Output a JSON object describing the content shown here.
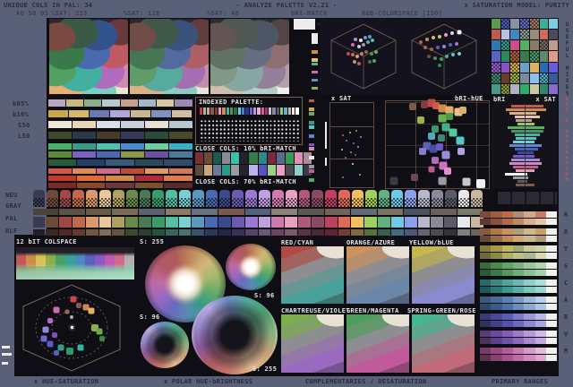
{
  "topbar": {
    "title_left": "UNIQUE COLS IN PAL: 34",
    "title_center": "- ANALYZE PALETTE V2.21 -",
    "title_right": "x SATURATION MODEL: PURITY",
    "toggles": "AO SO OS",
    "sat255": "%SAT: 255",
    "sat128": "%SAT: 128",
    "sat48": "%SAT: 48",
    "brimatch": "bRI-MATCh",
    "rgb_title": "RGB-COLORSPACE [ISO]"
  },
  "sidebar": {
    "b65": "b65%",
    "b10": "b10%",
    "s50": "S50",
    "l50": "L50",
    "neu": "NEU",
    "gray": "GRAY",
    "pal": "PAL",
    "hlf": "HLF"
  },
  "right_edge": {
    "useful_mixes": "USEFUL MIXES",
    "bri_saturation": "bRI & SATURATION",
    "primary_letters": "ROYGCABVM"
  },
  "bottombar": {
    "hue_saturation": "x HUE-SATURATION",
    "polar": "x POLAR HUE-bRIGHTNESS",
    "comp": "COMPLEMENTARIES / DESATURATION",
    "primary": "PRIMARY RANGES"
  },
  "palette": {
    "colors": [
      "#3a3a52",
      "#6b4a3a",
      "#a04848",
      "#c06a4a",
      "#d89a6a",
      "#e8c89a",
      "#b0a060",
      "#6a8a4a",
      "#4a7a52",
      "#3a9a6a",
      "#52c0a0",
      "#7ad0d0",
      "#5a9ac0",
      "#4a6ab0",
      "#3a4a8a",
      "#6a5ab0",
      "#9a7ad0",
      "#c0a0e0",
      "#d07ab0",
      "#e8a0c0",
      "#b05a7a",
      "#8a4a62",
      "#c04060",
      "#e06a5a",
      "#f0c060",
      "#a0d060",
      "#60b080",
      "#70c8e8",
      "#8aa0e8",
      "#b8b8c8",
      "#8a8a9a",
      "#5a5a6a",
      "#e8e8e8",
      "#c8b8a0"
    ]
  },
  "gray_row": [
    "#4a4438",
    "#5a5248",
    "#6a5a4a",
    "#7a6a58",
    "#5a6270",
    "#8a7a68",
    "#6a7280",
    "#7a5a50",
    "#52627a",
    "#8a8274",
    "#5a5a52",
    "#72625a",
    "#626a78",
    "#7a7262",
    "#4a525e",
    "#6a6258",
    "#7a7a6a"
  ],
  "strips": {
    "b65": [
      "#b8a8c0",
      "#c8b87a",
      "#8ab08a",
      "#b8c8d0",
      "#c8a08a",
      "#a0b8c8",
      "#d8c8a0",
      "#9a8ab0"
    ],
    "b10": [
      "#c8a84a",
      "#d8b86a",
      "#6a7ab0",
      "#b0a8d8",
      "#c8b890",
      "#8090c0",
      "#d0c0a0"
    ],
    "s50": [
      "#f0e8d8",
      "#e8d8b8",
      "#d8e0e8",
      "#c8d0d8",
      "#e8e0d0",
      "#b8c8d0"
    ],
    "l50": [
      "#3a4a2a",
      "#2a3a4a",
      "#4a3a2a",
      "#3a3a5a",
      "#2a4a3a",
      "#4a4a2a"
    ],
    "g1": [
      "#4ab06a",
      "#3a9a8a",
      "#52c0b0",
      "#4a8ad0",
      "#6ad0a0",
      "#3ab0c8"
    ],
    "g2": [
      "#5a8a3a",
      "#7a62c0",
      "#4a6ab0",
      "#8a9a4a",
      "#6a52a0",
      "#4a7a9a"
    ],
    "g3": [
      "#2a5a3a",
      "#24406a",
      "#3a5a7a",
      "#2a4a5a",
      "#344a6a"
    ],
    "r1": [
      "#d05a4a",
      "#e08a5a",
      "#d06a8a",
      "#c04a3a",
      "#e09a6a",
      "#d07a5a"
    ],
    "r2": [
      "#c03a2a",
      "#e06a3a",
      "#d08a4a",
      "#b02a3a",
      "#e07a52"
    ],
    "r3": [
      "#7a2a22",
      "#8a4a2a",
      "#6a3a3a",
      "#7a522a",
      "#5a2a2a"
    ]
  },
  "indexed": {
    "title": "INDEXED PALETTE:",
    "strip": [
      "#c04040",
      "#b0b0b0",
      "#c8a890",
      "#8a5a4a",
      "#7a3a3a",
      "#e8a0b0",
      "#d08a5a",
      "#4ab0a0",
      "#4a9a5a",
      "#2a6a4a",
      "#6ad0d0",
      "#4a7ad0",
      "#2a3a8a",
      "#7a5ad0",
      "#b09ae0",
      "#e8b0d0",
      "#d060a0",
      "#9a3a6a",
      "#c8c8c8",
      "#8a8a9a",
      "#5a5a6a",
      "#a0c86a",
      "#5ab0d8",
      "#c8b890",
      "#e8e8e8",
      "#ffffff"
    ]
  },
  "close_cols": {
    "label10": "CLOSE COLS: 10% bRI-MATCH",
    "label70": "CLOSE COLS: 70% bRI-MATCH",
    "cells": [
      "#7a3030",
      "#6a4a3a",
      "#1a5a4a",
      "#8a8a92",
      "#3ac0a8",
      "#23232b",
      "#3a7a4a",
      "#2a8a8a",
      "#7a2a3a",
      "#5a6a8a",
      "#3a9a52",
      "#e090b0",
      "#b08a9a",
      "#5a4a3a",
      "#c8a87a",
      "#6a7a9a",
      "#2a9a8a",
      "#9a9aa2",
      "#23232b",
      "#c0b0f0",
      "#5a52c0",
      "#9ad08a",
      "#e8a0c0",
      "#4a4a52",
      "#8ad0c8",
      "#3a3a4a"
    ]
  },
  "mixes": {
    "colors": [
      "#5a9a4a",
      "#4a5ab0!",
      "#8a92a2",
      "#5a6ac0!",
      "#9a7a62!",
      "#3ab09a",
      "#7ad0e0",
      "#c05a50",
      "#b8c0e8",
      "#3a8ac0",
      "#8a9a8a!",
      "#9a8a7a",
      "#d06a5a",
      "#4a4a5a",
      "#2a7ab0",
      "#3a9a8a!",
      "#d04a90",
      "#52b062",
      "#8a7a6a",
      "#7a6a5a!",
      "#c09a8a",
      "#5a62c8",
      "#2a8a5a",
      "#b05a3a!",
      "#3a7a4a",
      "#4a9a6a!",
      "#5a8a6a",
      "#e09a8a",
      "#9a5ad0!",
      "#8a52c0",
      "#d0b04a!",
      "#6aa0d0",
      "#e0b05a",
      "#2a6ab0",
      "#6a5ae0",
      "#3a8a6a!",
      "#6a3a2a",
      "#9ab04a!",
      "#7a8a9a",
      "#8ac0f0",
      "#4ab0c0!",
      "#3a5a9a",
      "#4a9a8a",
      "#8a9a3a!",
      "#b0b0c0",
      "#2ab062",
      "#d0c8a0",
      "#2a8a6a",
      "#8a6ad0"
    ]
  },
  "rgb_cubes": {
    "cube1": [
      [
        46,
        28,
        "#e8e8e8",
        4
      ],
      [
        40,
        26,
        "#b090d0",
        4
      ],
      [
        52,
        24,
        "#8a8ad0",
        4
      ],
      [
        58,
        22,
        "#5a9ad8",
        4
      ],
      [
        36,
        34,
        "#d06ab0",
        4
      ],
      [
        44,
        36,
        "#c8c8c8",
        4
      ],
      [
        50,
        34,
        "#9a9aa8",
        4
      ],
      [
        56,
        30,
        "#4ab0b0",
        4
      ],
      [
        62,
        28,
        "#52c0a0",
        4
      ],
      [
        30,
        46,
        "#c04a4a",
        4
      ],
      [
        36,
        48,
        "#d06a4a",
        4
      ],
      [
        42,
        50,
        "#e8a05a",
        4
      ],
      [
        48,
        46,
        "#b08a5a",
        4
      ],
      [
        54,
        44,
        "#8a6a4a",
        4
      ],
      [
        60,
        46,
        "#4a9a52",
        4
      ],
      [
        66,
        44,
        "#6ab062",
        4
      ],
      [
        38,
        58,
        "#d08a8a",
        4
      ],
      [
        44,
        60,
        "#c0605a",
        4
      ],
      [
        58,
        58,
        "#3a7a4a",
        4
      ],
      [
        64,
        56,
        "#52a06a",
        4
      ]
    ],
    "cube2": [
      [
        20,
        30,
        "#c05a5a",
        4
      ],
      [
        28,
        26,
        "#d0885a",
        4
      ],
      [
        36,
        24,
        "#e8b06a",
        4
      ],
      [
        44,
        22,
        "#c8c84a",
        4
      ],
      [
        52,
        20,
        "#e89ad0",
        4
      ],
      [
        60,
        18,
        "#d8d8d8",
        4
      ],
      [
        70,
        16,
        "#f0f0f0",
        5
      ],
      [
        26,
        38,
        "#b0624a",
        4
      ],
      [
        34,
        40,
        "#8a6a52",
        4
      ],
      [
        42,
        38,
        "#6a5ac0",
        4
      ],
      [
        50,
        36,
        "#8a8ae0",
        4
      ],
      [
        58,
        34,
        "#5a62c8",
        4
      ],
      [
        66,
        32,
        "#9a7ad0",
        4
      ],
      [
        30,
        50,
        "#7a4a42",
        4
      ],
      [
        38,
        52,
        "#5a8a52",
        4
      ],
      [
        46,
        54,
        "#3aa06a",
        4
      ],
      [
        54,
        50,
        "#4ab0a8",
        4
      ],
      [
        62,
        48,
        "#52c8c0",
        4
      ],
      [
        70,
        46,
        "#6ad0d8",
        4
      ],
      [
        44,
        62,
        "#2a8a5a",
        4
      ]
    ]
  },
  "tornado": {
    "label_left": "bRI",
    "label_right": "x SAT",
    "bars": [
      [
        "#c05a4a",
        40,
        55
      ],
      [
        "#d08a4a",
        55,
        65
      ],
      [
        "#d8b08a",
        45,
        35
      ],
      [
        "#e8c0a0",
        30,
        45
      ],
      [
        "#b0a090",
        25,
        20
      ],
      [
        "#a0c05a",
        20,
        30
      ],
      [
        "#5ab05a",
        50,
        60
      ],
      [
        "#3a9a6a",
        40,
        55
      ],
      [
        "#4ab0a0",
        30,
        45
      ],
      [
        "#52c8c0",
        25,
        35
      ],
      [
        "#6ad0e0",
        35,
        30
      ],
      [
        "#5a8ad0",
        45,
        50
      ],
      [
        "#4a62c0",
        30,
        40
      ],
      [
        "#3a4a9a",
        20,
        25
      ],
      [
        "#7a5ac0",
        35,
        30
      ],
      [
        "#a08ae0",
        40,
        45
      ],
      [
        "#d08ac0",
        45,
        50
      ],
      [
        "#c05a9a",
        35,
        40
      ],
      [
        "#e8a0b0",
        25,
        30
      ],
      [
        "#f0f0f0",
        60,
        8
      ],
      [
        "#9a9aa2",
        35,
        10
      ],
      [
        "#5a5a62",
        20,
        8
      ],
      [
        "#7a5a4a",
        25,
        30
      ]
    ]
  },
  "scatter": {
    "label_sat": "x SAT",
    "label_brihue": "bRI-hUE",
    "dots": [
      [
        26,
        6,
        "#7a5a4a",
        8
      ],
      [
        37,
        4,
        "#8a3a3a",
        8
      ],
      [
        44,
        2,
        "#c04848",
        9
      ],
      [
        49,
        5,
        "#d05a4a",
        8
      ],
      [
        55,
        8,
        "#d08a4a",
        9
      ],
      [
        62,
        10,
        "#e8a86a",
        9
      ],
      [
        70,
        12,
        "#e8c088",
        9
      ],
      [
        75,
        10,
        "#d8b06a",
        8
      ],
      [
        34,
        22,
        "#a0b04a",
        8
      ],
      [
        55,
        20,
        "#6ab04a",
        9
      ],
      [
        62,
        18,
        "#4a9a4a",
        8
      ],
      [
        48,
        32,
        "#3a9a6a",
        8
      ],
      [
        58,
        30,
        "#42b08a",
        9
      ],
      [
        65,
        36,
        "#52c8a0",
        9
      ],
      [
        54,
        42,
        "#3a8a7a",
        8
      ],
      [
        44,
        40,
        "#52a8c0",
        8
      ],
      [
        72,
        45,
        "#52c8c8",
        9
      ],
      [
        40,
        52,
        "#5a62b8",
        9
      ],
      [
        46,
        55,
        "#4a4aa0",
        9
      ],
      [
        52,
        53,
        "#6a5ac8",
        8
      ],
      [
        36,
        58,
        "#8a7ad0",
        8
      ],
      [
        58,
        62,
        "#9a8ae0",
        9
      ],
      [
        73,
        58,
        "#b0a0e8",
        8
      ],
      [
        48,
        68,
        "#b06ac0",
        8
      ],
      [
        56,
        74,
        "#d070c0",
        9
      ],
      [
        60,
        80,
        "#e090d0",
        8
      ],
      [
        44,
        78,
        "#c05a8a",
        7
      ],
      [
        28,
        88,
        "#6a4a52",
        8
      ],
      [
        8,
        92,
        "#3a3a42",
        9
      ],
      [
        55,
        92,
        "#9a9aa2",
        9
      ],
      [
        78,
        93,
        "#c8c8c8",
        9
      ],
      [
        92,
        95,
        "#f0f0f0",
        10
      ]
    ],
    "mini_dots": [
      [
        30,
        38,
        "#d06a5a",
        2
      ],
      [
        45,
        35,
        "#e8b06a",
        2
      ],
      [
        60,
        33,
        "#8ab04a",
        2
      ],
      [
        70,
        40,
        "#52b0a0",
        2
      ],
      [
        38,
        45,
        "#5a8ad0",
        2
      ],
      [
        55,
        48,
        "#9a6ad0",
        2
      ],
      [
        65,
        52,
        "#d08ac0",
        2
      ],
      [
        28,
        55,
        "#c8c8c8",
        2
      ],
      [
        48,
        58,
        "#4ab0c0",
        2
      ],
      [
        58,
        62,
        "#6a62c8",
        2
      ],
      [
        35,
        65,
        "#c05a9a",
        2
      ],
      [
        52,
        72,
        "#e8e8e8",
        2
      ],
      [
        68,
        85,
        "#d0b06a",
        2
      ],
      [
        30,
        88,
        "#8a8a92",
        2
      ]
    ]
  },
  "ticks": {
    "strip_top": [
      "",
      "#d08a4a",
      "",
      "#e8c060",
      "#52b0a0",
      "",
      "#d06ab0",
      "",
      "#6a8ad0",
      "",
      "#8ab04a",
      ""
    ],
    "strip_side": [
      "#c05a4a",
      "",
      "#d0a84a",
      "#6ab04a",
      "",
      "#3a9a8a",
      "#52c8c8",
      "",
      "#5a8ad0",
      "",
      "#7a5ac0",
      "#d08ac0",
      "",
      "#e8e8e8",
      "",
      "#9a9aa2",
      "#c05a9a",
      "",
      "#52b062",
      ""
    ]
  },
  "colspace": {
    "title": "12 bIT COLSPACE",
    "columns": [
      "#c05a5a",
      "#d08a4a",
      "#d8c05a",
      "#8ab04a",
      "#4aa06a",
      "#3aa09a",
      "#4a8ac0",
      "#5a62c0",
      "#8a5ac8",
      "#c05ab0",
      "#d06a8a",
      "#b0b0b0"
    ],
    "wheel_dots": [
      [
        52,
        18,
        "#c84848",
        7
      ],
      [
        57,
        25,
        "#8a5a4a",
        6
      ],
      [
        63,
        27,
        "#d08a4a",
        7
      ],
      [
        68,
        31,
        "#e8b060",
        7
      ],
      [
        36,
        30,
        "#d06ab0",
        7
      ],
      [
        46,
        32,
        "#9a6a5a",
        5
      ],
      [
        50,
        38,
        "#c8a890",
        4
      ],
      [
        72,
        50,
        "#8ab052",
        8
      ],
      [
        76,
        54,
        "#6aa84a",
        7
      ],
      [
        30,
        42,
        "#b86ad0",
        6
      ],
      [
        26,
        52,
        "#8a8ae0",
        7
      ],
      [
        78,
        62,
        "#3a8a3a",
        6
      ],
      [
        24,
        62,
        "#6a6ad0",
        7
      ],
      [
        34,
        58,
        "#7a52c0",
        6
      ],
      [
        30,
        68,
        "#5a5ac8",
        7
      ],
      [
        40,
        72,
        "#3a9a8a",
        7
      ],
      [
        48,
        76,
        "#2a9a6a",
        8
      ],
      [
        58,
        72,
        "#3ab0a0",
        7
      ],
      [
        36,
        78,
        "#4a62c0",
        6
      ]
    ]
  },
  "polar": {
    "l1": "S: 255",
    "l2": "S: 96",
    "l3": "S: 96",
    "l4": "S: 255"
  },
  "complementaries": {
    "panels": [
      {
        "title": "RED/CYAN",
        "a": "#b04a42",
        "b": "#4aa09a"
      },
      {
        "title": "ORANGE/AZURE",
        "a": "#d0925a",
        "b": "#6a86a8"
      },
      {
        "title": "YELLOW/bLUE",
        "a": "#c8b84a",
        "b": "#8a8ad0"
      },
      {
        "title": "CHARTREUSE/VIOLET",
        "a": "#7ab04a",
        "b": "#9a6ac0"
      },
      {
        "title": "GREEN/MAGENTA",
        "a": "#4aa05a",
        "b": "#c05a9a"
      },
      {
        "title": "SPRING-GREEN/ROSE",
        "a": "#42b890",
        "b": "#c06a7a"
      }
    ]
  },
  "primary_ranges": {
    "groups": [
      {
        "l": "R",
        "s1": [
          "#7a4a3a",
          "#a05a42",
          "#c06a4a",
          "#b08a7a",
          "#d0a88a",
          "#c87a62"
        ],
        "s2": [
          "#5a3a32",
          "#8a523a",
          "#b06a52",
          "#c08a62",
          "#d8b090",
          "#e0c8a8"
        ]
      },
      {
        "l": "O",
        "s1": [
          "#8a5a3a",
          "#b07a42",
          "#c8925a",
          "#b0a07a",
          "#d0b88a",
          "#c8a062"
        ],
        "s2": [
          "#6a4a32",
          "#9a6a42",
          "#c08a52",
          "#d0a86a",
          "#c8b890",
          "#b0987a"
        ]
      },
      {
        "l": "Y",
        "s1": [
          "#8a7a3a",
          "#a89a4a",
          "#c0b85a",
          "#a0a87a",
          "#c8c890",
          "#d0d0a8"
        ],
        "s2": [
          "#6a6a3a",
          "#8a8a42",
          "#b0b062",
          "#c0c080",
          "#a8b890",
          "#d8d8b0"
        ]
      },
      {
        "l": "G",
        "s1": [
          "#3a6a3a",
          "#4a8a4a",
          "#5aa862",
          "#7ab082",
          "#9ac89a",
          "#b0d8b0"
        ],
        "s2": [
          "#2a5a3a",
          "#3a7a4a",
          "#52985a",
          "#6ab07a",
          "#8ac092",
          "#a8d0a8"
        ]
      },
      {
        "l": "C",
        "s1": [
          "#2a6a62",
          "#3a8a82",
          "#4aa89a",
          "#6ab8b0",
          "#8ad0c8",
          "#a8e0d8"
        ],
        "s2": [
          "#1a5a5a",
          "#2a7a72",
          "#3a9a92",
          "#5ab0a8",
          "#7ac8c0",
          "#98d8d0"
        ]
      },
      {
        "l": "A",
        "s1": [
          "#3a5a7a",
          "#4a6a9a",
          "#5a82b8",
          "#7a9ac8",
          "#9ab8d8",
          "#b8d0e8"
        ],
        "s2": [
          "#2a4a6a",
          "#3a5a8a",
          "#4a72a8",
          "#6a8ec0",
          "#8aaad0",
          "#a8c8e0"
        ]
      },
      {
        "l": "B",
        "s1": [
          "#3a3a7a",
          "#4a4a9a",
          "#5a5ab8",
          "#7a7ac8",
          "#9a9ad8",
          "#b8b8e8"
        ],
        "s2": [
          "#32325a",
          "#42428a",
          "#5252a8",
          "#6a6ac0",
          "#8a8ad0",
          "#a8a8e0"
        ]
      },
      {
        "l": "V",
        "s1": [
          "#5a3a7a",
          "#6a4a9a",
          "#8a5ab8",
          "#a07ac8",
          "#b89ad8",
          "#d0b8e8"
        ],
        "s2": [
          "#4a325a",
          "#5a428a",
          "#7252a8",
          "#8a6ac0",
          "#a88ad0",
          "#c0a8e0"
        ]
      },
      {
        "l": "M",
        "s1": [
          "#7a3a6a",
          "#9a4a82",
          "#b85a9a",
          "#c87ab0",
          "#d89ac8",
          "#e8b8d8"
        ],
        "s2": [
          "#5a324a",
          "#8a4272",
          "#a85290",
          "#c06aa8",
          "#d08ac0",
          "#e0a8d0"
        ]
      }
    ]
  }
}
